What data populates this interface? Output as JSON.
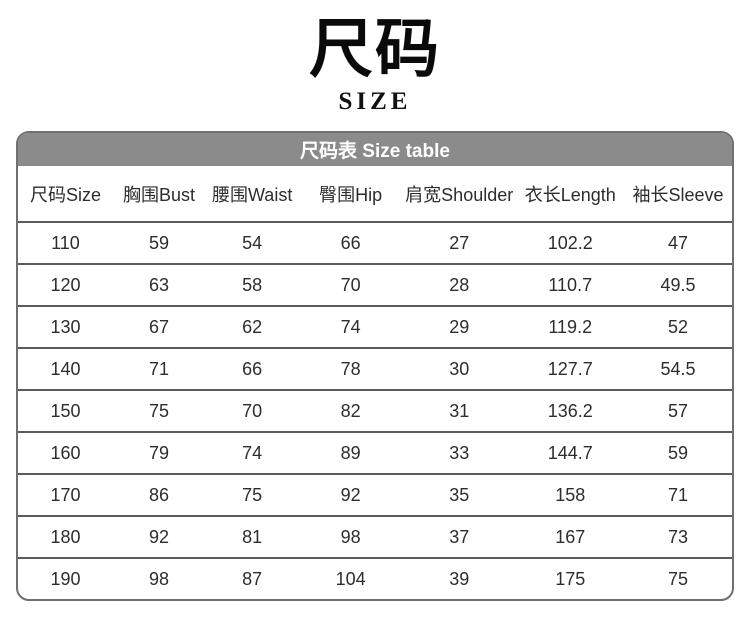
{
  "page": {
    "title": "尺码",
    "subtitle": "SIZE"
  },
  "table": {
    "caption": "尺码表 Size table",
    "columns": [
      "尺码Size",
      "胸围Bust",
      "腰围Waist",
      "臀围Hip",
      "肩宽Shoulder",
      "衣长Length",
      "袖长Sleeve"
    ],
    "rows": [
      [
        "110",
        "59",
        "54",
        "66",
        "27",
        "102.2",
        "47"
      ],
      [
        "120",
        "63",
        "58",
        "70",
        "28",
        "110.7",
        "49.5"
      ],
      [
        "130",
        "67",
        "62",
        "74",
        "29",
        "119.2",
        "52"
      ],
      [
        "140",
        "71",
        "66",
        "78",
        "30",
        "127.7",
        "54.5"
      ],
      [
        "150",
        "75",
        "70",
        "82",
        "31",
        "136.2",
        "57"
      ],
      [
        "160",
        "79",
        "74",
        "89",
        "33",
        "144.7",
        "59"
      ],
      [
        "170",
        "86",
        "75",
        "92",
        "35",
        "158",
        "71"
      ],
      [
        "180",
        "92",
        "81",
        "98",
        "37",
        "167",
        "73"
      ],
      [
        "190",
        "98",
        "87",
        "104",
        "39",
        "175",
        "75"
      ]
    ]
  },
  "colors": {
    "caption_bg": "#8b8b8b",
    "caption_text": "#ffffff",
    "table_border": "#6f6f6f",
    "row_divider": "#5c5c5c",
    "body_text": "#2d2d2d",
    "title_text": "#0a0a0a"
  }
}
